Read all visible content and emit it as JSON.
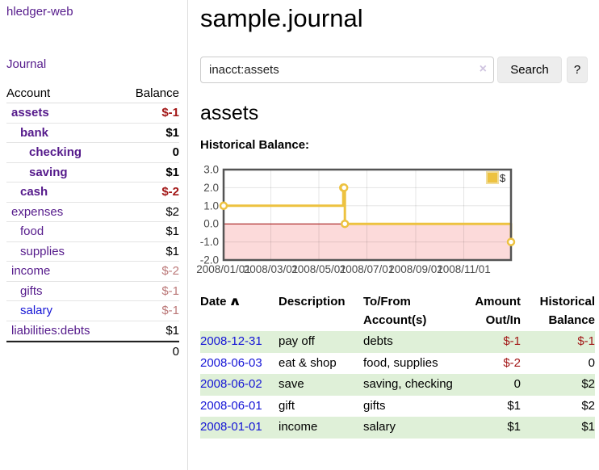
{
  "app": {
    "brand": "hledger-web",
    "nav_journal": "Journal"
  },
  "colors": {
    "link_purple": "#551a8b",
    "link_blue": "#1515d6",
    "negative_strong": "#a21616",
    "negative_soft": "#bb7878",
    "row_stripe_green": "#dff0d8"
  },
  "sidebar": {
    "accounts_header": {
      "account": "Account",
      "balance": "Balance"
    },
    "accounts": [
      {
        "name": "assets",
        "balance": "$-1",
        "level": 1,
        "bold": true,
        "link": "visited",
        "balance_class": "neg-strong"
      },
      {
        "name": "bank",
        "balance": "$1",
        "level": 2,
        "bold": true,
        "link": "visited",
        "balance_class": ""
      },
      {
        "name": "checking",
        "balance": "0",
        "level": 3,
        "bold": true,
        "link": "visited",
        "balance_class": ""
      },
      {
        "name": "saving",
        "balance": "$1",
        "level": 3,
        "bold": true,
        "link": "visited",
        "balance_class": ""
      },
      {
        "name": "cash",
        "balance": "$-2",
        "level": 2,
        "bold": true,
        "link": "visited",
        "balance_class": "neg-strong"
      },
      {
        "name": "expenses",
        "balance": "$2",
        "level": 1,
        "bold": false,
        "link": "visited",
        "balance_class": ""
      },
      {
        "name": "food",
        "balance": "$1",
        "level": 2,
        "bold": false,
        "link": "visited",
        "balance_class": ""
      },
      {
        "name": "supplies",
        "balance": "$1",
        "level": 2,
        "bold": false,
        "link": "visited",
        "balance_class": ""
      },
      {
        "name": "income",
        "balance": "$-2",
        "level": 1,
        "bold": false,
        "link": "visited",
        "balance_class": "neg-soft"
      },
      {
        "name": "gifts",
        "balance": "$-1",
        "level": 2,
        "bold": false,
        "link": "visited",
        "balance_class": "neg-soft"
      },
      {
        "name": "salary",
        "balance": "$-1",
        "level": 2,
        "bold": false,
        "link": "unvisited",
        "balance_class": "neg-soft"
      },
      {
        "name": "liabilities:debts",
        "balance": "$1",
        "level": 1,
        "bold": false,
        "link": "visited",
        "balance_class": ""
      }
    ],
    "total": "0"
  },
  "header": {
    "title": "sample.journal"
  },
  "search": {
    "value": "inacct:assets",
    "clear_icon": "×",
    "search_label": "Search",
    "help_label": "?"
  },
  "account_page": {
    "title": "assets",
    "chart_label": "Historical Balance:"
  },
  "chart_data": {
    "type": "line",
    "line_style": "steps",
    "title": "Historical Balance:",
    "legend": [
      {
        "name": "$",
        "color": "#edc240"
      }
    ],
    "legend_position": "top-right",
    "grid": true,
    "x_range": [
      "2008/01/01",
      "2008/12/31"
    ],
    "ylim": [
      -2,
      3
    ],
    "y_ticks": [
      3.0,
      2.0,
      1.0,
      0.0,
      -1.0,
      -2.0
    ],
    "y_tick_labels": [
      "3.0",
      "2.0",
      "1.0",
      "0.0",
      "-1.0",
      "-2.0"
    ],
    "x_ticks": [
      "2008/01/01",
      "2008/03/01",
      "2008/05/01",
      "2008/07/01",
      "2008/09/01",
      "2008/11/01"
    ],
    "x_tick_labels": [
      "2008/01/01",
      "2008/03/01",
      "2008/05/01",
      "2008/07/01",
      "2008/09/01",
      "2008/11/01"
    ],
    "series": [
      {
        "name": "$",
        "color": "#edc240",
        "points": [
          {
            "date": "2008/01/01",
            "value": 1
          },
          {
            "date": "2008/06/01",
            "value": 2
          },
          {
            "date": "2008/06/02",
            "value": 2
          },
          {
            "date": "2008/06/03",
            "value": 0
          },
          {
            "date": "2008/12/31",
            "value": -1
          }
        ]
      }
    ],
    "negative_region_fill": "#fcdada",
    "zero_line_color": "#9c0606",
    "gridline_color": "rgba(0,0,0,0.10)",
    "border_color": "#545454",
    "tick_label_color": "#4a4a4a"
  },
  "register": {
    "columns": [
      {
        "label": "Date",
        "sort_indicator": "∧",
        "align": "left"
      },
      {
        "label": "Description",
        "align": "left"
      },
      {
        "label": "To/From Account(s)",
        "align": "left"
      },
      {
        "label": "Amount Out/In",
        "align": "right"
      },
      {
        "label": "Historical Balance",
        "align": "right"
      }
    ],
    "rows": [
      {
        "date": "2008-12-31",
        "description": "pay off",
        "accounts": "debts",
        "amount": "$-1",
        "amount_negative": true,
        "balance": "$-1",
        "balance_negative": true
      },
      {
        "date": "2008-06-03",
        "description": "eat & shop",
        "accounts": "food, supplies",
        "amount": "$-2",
        "amount_negative": true,
        "balance": "0",
        "balance_negative": false
      },
      {
        "date": "2008-06-02",
        "description": "save",
        "accounts": "saving, checking",
        "amount": "0",
        "amount_negative": false,
        "balance": "$2",
        "balance_negative": false
      },
      {
        "date": "2008-06-01",
        "description": "gift",
        "accounts": "gifts",
        "amount": "$1",
        "amount_negative": false,
        "balance": "$2",
        "balance_negative": false
      },
      {
        "date": "2008-01-01",
        "description": "income",
        "accounts": "salary",
        "amount": "$1",
        "amount_negative": false,
        "balance": "$1",
        "balance_negative": false
      }
    ]
  }
}
